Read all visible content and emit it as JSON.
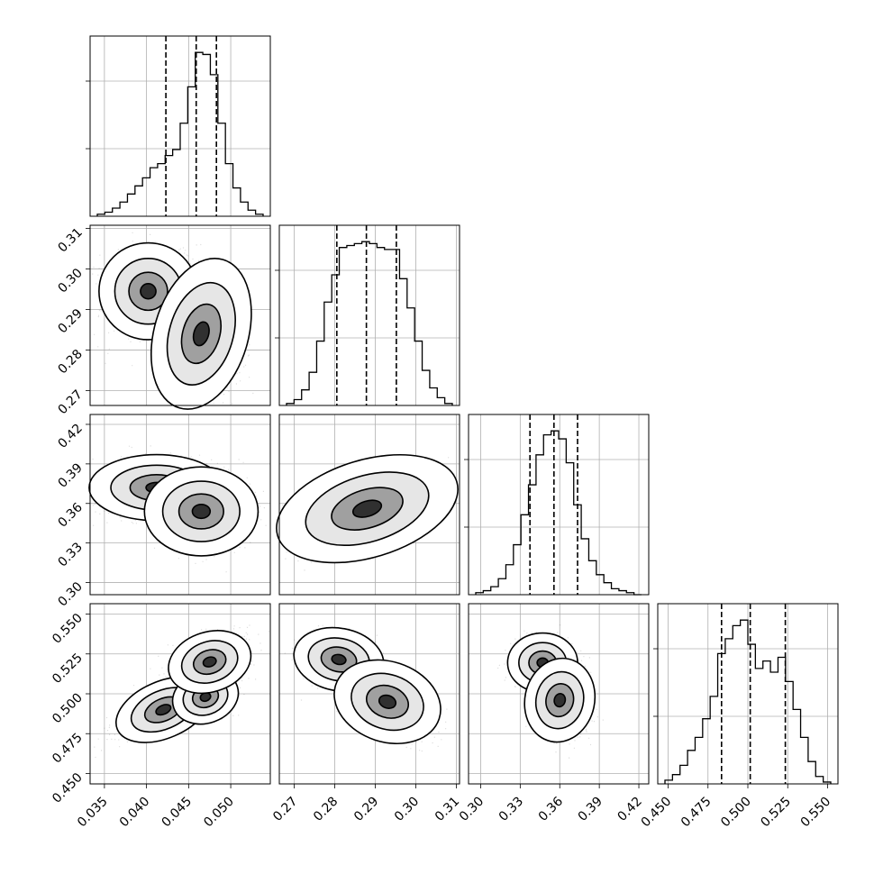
{
  "chart_data": {
    "type": "corner",
    "grid": true,
    "parameters": [
      {
        "ticks": [
          0.035,
          0.04,
          0.045,
          0.05
        ],
        "tick_labels": [
          "0.035",
          "0.040",
          "0.045",
          "0.050"
        ],
        "range": [
          0.0333,
          0.0547
        ],
        "quantiles": [
          0.0423,
          0.0459,
          0.0483
        ],
        "histogram": [
          1,
          2,
          4,
          7,
          11,
          15,
          19,
          24,
          26,
          30,
          33,
          46,
          64,
          81,
          80,
          70,
          46,
          26,
          14,
          7,
          3,
          1
        ]
      },
      {
        "ticks": [
          0.27,
          0.28,
          0.29,
          0.3,
          0.31
        ],
        "tick_labels": [
          "0.27",
          "0.28",
          "0.29",
          "0.30",
          "0.31"
        ],
        "range": [
          0.2663,
          0.3108
        ],
        "quantiles": [
          0.2805,
          0.2878,
          0.2952
        ],
        "histogram": [
          1,
          3,
          8,
          17,
          33,
          53,
          67,
          81,
          82,
          83,
          84,
          83,
          81,
          80,
          80,
          65,
          50,
          33,
          18,
          9,
          4,
          1
        ]
      },
      {
        "ticks": [
          0.3,
          0.33,
          0.36,
          0.39,
          0.42
        ],
        "tick_labels": [
          "0.30",
          "0.33",
          "0.36",
          "0.39",
          "0.42"
        ],
        "range": [
          0.2908,
          0.4275
        ],
        "quantiles": [
          0.3374,
          0.3556,
          0.3735
        ],
        "histogram": [
          1,
          2,
          4,
          8,
          15,
          25,
          40,
          55,
          70,
          80,
          82,
          78,
          66,
          45,
          28,
          17,
          10,
          6,
          3,
          2,
          1,
          0
        ]
      },
      {
        "ticks": [
          0.45,
          0.475,
          0.5,
          0.525,
          0.55
        ],
        "tick_labels": [
          "0.450",
          "0.475",
          "0.500",
          "0.525",
          "0.550"
        ],
        "range": [
          0.4435,
          0.5565
        ],
        "quantiles": [
          0.4835,
          0.5015,
          0.5235
        ],
        "histogram": [
          2,
          5,
          10,
          18,
          25,
          35,
          47,
          70,
          78,
          85,
          88,
          75,
          62,
          66,
          60,
          68,
          55,
          40,
          25,
          12,
          4,
          1
        ]
      }
    ],
    "pair_modes": [
      {
        "row": 1,
        "col": 0,
        "modes": [
          {
            "x": 0.0402,
            "y": 0.2945,
            "w": 0.45,
            "sx": 0.0022,
            "sy": 0.0045,
            "rho": 0.0
          },
          {
            "x": 0.0465,
            "y": 0.284,
            "w": 0.55,
            "sx": 0.0019,
            "sy": 0.0065,
            "rho": -0.2
          }
        ]
      },
      {
        "row": 2,
        "col": 0,
        "modes": [
          {
            "x": 0.0412,
            "y": 0.372,
            "w": 0.4,
            "sx": 0.0032,
            "sy": 0.01,
            "rho": 0.0
          },
          {
            "x": 0.0465,
            "y": 0.354,
            "w": 0.6,
            "sx": 0.0022,
            "sy": 0.011,
            "rho": 0.0
          }
        ]
      },
      {
        "row": 2,
        "col": 1,
        "modes": [
          {
            "x": 0.288,
            "y": 0.356,
            "w": 1.0,
            "sx": 0.0075,
            "sy": 0.012,
            "rho": 0.65
          }
        ]
      },
      {
        "row": 3,
        "col": 0,
        "modes": [
          {
            "x": 0.042,
            "y": 0.49,
            "w": 0.25,
            "sx": 0.003,
            "sy": 0.009,
            "rho": 0.85
          },
          {
            "x": 0.047,
            "y": 0.498,
            "w": 0.35,
            "sx": 0.0017,
            "sy": 0.007,
            "rho": 0.5
          },
          {
            "x": 0.0475,
            "y": 0.52,
            "w": 0.4,
            "sx": 0.002,
            "sy": 0.0075,
            "rho": 0.5
          }
        ]
      },
      {
        "row": 3,
        "col": 1,
        "modes": [
          {
            "x": 0.281,
            "y": 0.5215,
            "w": 0.5,
            "sx": 0.004,
            "sy": 0.007,
            "rho": -0.3
          },
          {
            "x": 0.293,
            "y": 0.495,
            "w": 0.5,
            "sx": 0.0048,
            "sy": 0.009,
            "rho": -0.5
          }
        ]
      },
      {
        "row": 3,
        "col": 2,
        "modes": [
          {
            "x": 0.347,
            "y": 0.5195,
            "w": 0.45,
            "sx": 0.01,
            "sy": 0.007,
            "rho": 0.0
          },
          {
            "x": 0.36,
            "y": 0.496,
            "w": 0.55,
            "sx": 0.009,
            "sy": 0.009,
            "rho": -0.2
          }
        ]
      }
    ]
  }
}
